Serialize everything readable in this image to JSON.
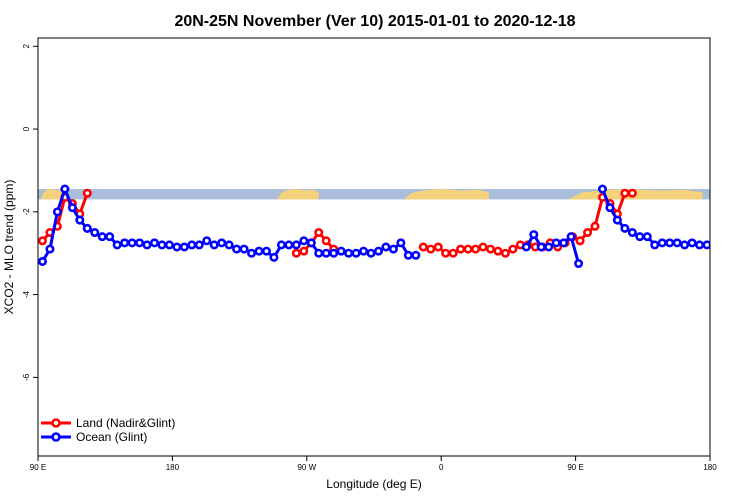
{
  "chart_data": {
    "type": "line",
    "title": "20N-25N November (Ver 10)   2015-01-01 to 2020-12-18",
    "xlabel": "Longitude (deg E)",
    "ylabel": "XCO2 - MLO trend (ppm)",
    "x_ticks": [
      {
        "value": 90,
        "label": "90 E"
      },
      {
        "value": 180,
        "label": "180"
      },
      {
        "value": 270,
        "label": "90 W"
      },
      {
        "value": 360,
        "label": "0"
      },
      {
        "value": 450,
        "label": "90 E"
      },
      {
        "value": 540,
        "label": "180"
      }
    ],
    "y_ticks": [
      {
        "value": 2,
        "label": "2"
      },
      {
        "value": 0,
        "label": "0"
      },
      {
        "value": -2,
        "label": "-2"
      },
      {
        "value": -4,
        "label": "-4"
      },
      {
        "value": -6,
        "label": "-6"
      }
    ],
    "xlim": [
      90,
      540
    ],
    "ylim": [
      -7.9,
      2.2
    ],
    "land_band": {
      "ymin": -1.7,
      "ymax": -1.45,
      "ocean_color": "#a9bcd9",
      "land_color": "#f3d27a",
      "land_ranges": [
        [
          92,
          107
        ],
        [
          250,
          278
        ],
        [
          335,
          392
        ],
        [
          445,
          535
        ]
      ]
    },
    "legend": {
      "position": "bottom-left",
      "entries": [
        {
          "name": "Land (Nadir&Glint)",
          "color": "#ff0000"
        },
        {
          "name": "Ocean (Glint)",
          "color": "#0000ff"
        }
      ]
    },
    "series": [
      {
        "name": "Land (Nadir&Glint)",
        "color": "#ff0000",
        "segments": [
          {
            "x": [
              93,
              98,
              103,
              108,
              113,
              118,
              123
            ],
            "y": [
              -2.7,
              -2.5,
              -2.35,
              -1.65,
              -1.8,
              -2.05,
              -1.55
            ]
          },
          {
            "x": [
              263,
              268,
              273,
              278,
              283,
              288
            ],
            "y": [
              -3.0,
              -2.95,
              -2.75,
              -2.5,
              -2.7,
              -2.9
            ]
          },
          {
            "x": [
              348,
              353,
              358,
              363,
              368,
              373,
              378,
              383,
              388,
              393,
              398,
              403,
              408,
              413,
              418,
              423,
              428,
              433,
              438,
              443,
              448,
              453
            ],
            "y": [
              -2.85,
              -2.9,
              -2.85,
              -3.0,
              -3.0,
              -2.9,
              -2.9,
              -2.9,
              -2.85,
              -2.9,
              -2.95,
              -3.0,
              -2.9,
              -2.8,
              -2.8,
              -2.85,
              -2.85,
              -2.75,
              -2.85,
              -2.75,
              -2.6,
              -2.7
            ]
          },
          {
            "x": [
              453,
              458,
              463,
              468,
              473,
              478,
              483,
              488
            ],
            "y": [
              -2.7,
              -2.5,
              -2.35,
              -1.65,
              -1.8,
              -2.05,
              -1.55,
              -1.55
            ]
          }
        ]
      },
      {
        "name": "Ocean (Glint)",
        "color": "#0000ff",
        "segments": [
          {
            "x": [
              93,
              98,
              103,
              108,
              113,
              118,
              123
            ],
            "y": [
              -3.2,
              -2.9,
              -2.0,
              -1.45,
              -1.9,
              -2.2,
              -2.4
            ]
          },
          {
            "x": [
              123,
              128,
              133,
              138,
              143,
              148,
              153,
              158,
              163,
              168,
              173,
              178,
              183,
              188,
              193,
              198,
              203,
              208,
              213,
              218,
              223,
              228,
              233,
              238,
              243,
              248,
              253,
              258,
              263,
              268,
              273,
              278,
              283,
              288,
              293,
              298,
              303,
              308,
              313,
              318,
              323,
              328,
              333,
              338,
              343
            ],
            "y": [
              -2.4,
              -2.5,
              -2.6,
              -2.6,
              -2.8,
              -2.75,
              -2.75,
              -2.75,
              -2.8,
              -2.75,
              -2.8,
              -2.8,
              -2.85,
              -2.85,
              -2.8,
              -2.8,
              -2.7,
              -2.8,
              -2.75,
              -2.8,
              -2.9,
              -2.9,
              -3.0,
              -2.95,
              -2.95,
              -3.1,
              -2.8,
              -2.8,
              -2.8,
              -2.7,
              -2.75,
              -3.0,
              -3.0,
              -3.0,
              -2.95,
              -3.0,
              -3.0,
              -2.95,
              -3.0,
              -2.95,
              -2.85,
              -2.9,
              -2.75,
              -3.05,
              -3.05
            ]
          },
          {
            "x": [
              417,
              422,
              427,
              432,
              437,
              442,
              447,
              452
            ],
            "y": [
              -2.85,
              -2.55,
              -2.85,
              -2.85,
              -2.75,
              -2.75,
              -2.6,
              -3.25
            ]
          },
          {
            "x": [
              468,
              473,
              478,
              483,
              488,
              493,
              498,
              503,
              508,
              513,
              518,
              523,
              528,
              533,
              538,
              543
            ],
            "y": [
              -1.45,
              -1.9,
              -2.2,
              -2.4,
              -2.5,
              -2.6,
              -2.6,
              -2.8,
              -2.75,
              -2.75,
              -2.75,
              -2.8,
              -2.75,
              -2.8,
              -2.8,
              -2.85
            ]
          }
        ]
      }
    ]
  }
}
